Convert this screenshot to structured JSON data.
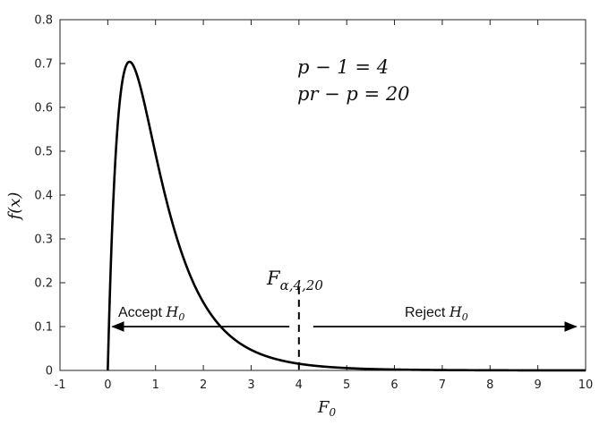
{
  "chart_data": {
    "type": "line",
    "title": "",
    "xlabel": "F0",
    "ylabel": "f(x)",
    "xlim": [
      -1,
      10
    ],
    "ylim": [
      0,
      0.8
    ],
    "xticks": [
      -1,
      0,
      1,
      2,
      3,
      4,
      5,
      6,
      7,
      8,
      9,
      10
    ],
    "yticks": [
      0,
      0.1,
      0.2,
      0.3,
      0.4,
      0.5,
      0.6,
      0.7,
      0.8
    ],
    "grid": false,
    "series": [
      {
        "distribution": "F",
        "df1": 4,
        "df2": 20,
        "color": "#000000",
        "x": [
          0,
          0.05,
          0.1,
          0.2,
          0.3,
          0.4,
          0.5,
          0.6,
          0.8,
          1.0,
          1.2,
          1.5,
          2.0,
          2.5,
          3.0,
          3.5,
          4.0,
          5.0,
          6.0,
          7.0,
          8.0,
          9.0,
          10.0
        ],
        "y": [
          0,
          0.359,
          0.508,
          0.648,
          0.695,
          0.703,
          0.69,
          0.664,
          0.595,
          0.518,
          0.443,
          0.342,
          0.21,
          0.126,
          0.075,
          0.044,
          0.026,
          0.009,
          0.003,
          0.001,
          0.0005,
          0.0002,
          0.0001
        ]
      }
    ],
    "annotations": {
      "params_line1": "p − 1 = 4",
      "params_line2": "pr − p = 20",
      "critical_label": "Fα,4,20",
      "critical_value": 4,
      "accept_label": "Accept",
      "reject_label": "Reject",
      "hypothesis": "H0",
      "arrow_y": 0.1
    }
  }
}
